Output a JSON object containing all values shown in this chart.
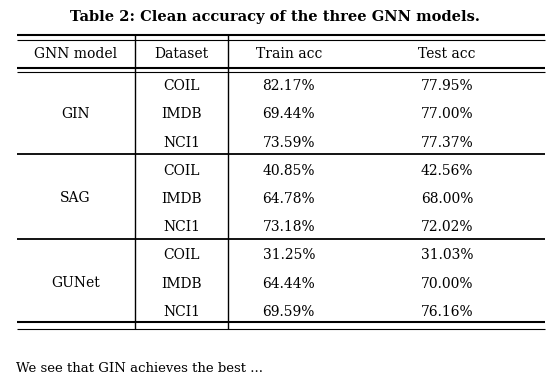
{
  "title": "Table 2: Clean accuracy of the three GNN models.",
  "col_headers": [
    "GNN model",
    "Dataset",
    "Train acc",
    "Test acc"
  ],
  "gnn_models": [
    "GIN",
    "SAG",
    "GUNet"
  ],
  "datasets": [
    "COIL",
    "IMDB",
    "NCI1"
  ],
  "data": [
    [
      "82.17%",
      "77.95%"
    ],
    [
      "69.44%",
      "77.00%"
    ],
    [
      "73.59%",
      "77.37%"
    ],
    [
      "40.85%",
      "42.56%"
    ],
    [
      "64.78%",
      "68.00%"
    ],
    [
      "73.18%",
      "72.02%"
    ],
    [
      "31.25%",
      "31.03%"
    ],
    [
      "64.44%",
      "70.00%"
    ],
    [
      "69.59%",
      "76.16%"
    ]
  ],
  "bg_color": "#ffffff",
  "text_color": "#000000",
  "title_fontsize": 10.5,
  "header_fontsize": 10,
  "cell_fontsize": 10,
  "bottom_text": "We see that GIN achieves the best ..."
}
